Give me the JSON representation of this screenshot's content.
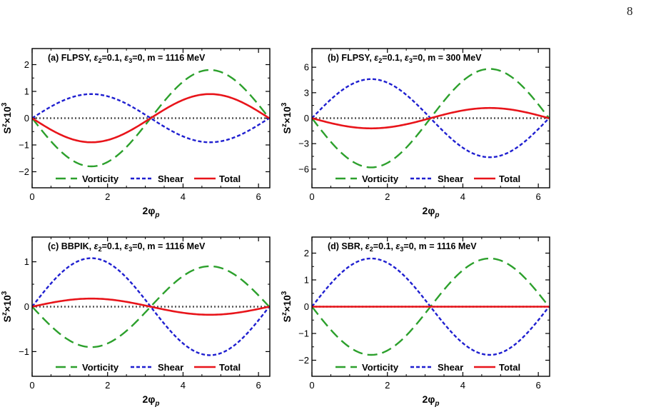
{
  "page_number": "8",
  "colors": {
    "vorticity": "#2ca02c",
    "shear": "#1f1fd0",
    "total": "#e8141a",
    "zero_line": "#555555"
  },
  "chart_data": [
    {
      "type": "line",
      "title_prefix": "(a) FLPSY, ",
      "title_suffix": "=0, m = 1116 MeV",
      "epsilon2": "=0.1, ",
      "xlabel": "2φ",
      "xlabel_sub": "p",
      "ylabel": "S",
      "ylabel_sup": "z",
      "ylabel_mid": "×10",
      "ylabel_exp": "3",
      "xlim": [
        0,
        6.3
      ],
      "ylim": [
        -2.6,
        2.6
      ],
      "xticks": [
        0,
        2,
        4,
        6
      ],
      "xtick_labels": [
        "0",
        "2",
        "4",
        "6"
      ],
      "yticks": [
        -2,
        -1,
        0,
        1,
        2
      ],
      "ytick_labels": [
        "−2",
        "−1",
        "0",
        "1",
        "2"
      ],
      "zero_line": true,
      "series": [
        {
          "name": "Vorticity",
          "function": "-A*sin(x)",
          "amplitude": 1.8,
          "style": "long-dash"
        },
        {
          "name": "Shear",
          "function": "A*sin(x)",
          "amplitude": 0.9,
          "style": "short-dash"
        },
        {
          "name": "Total",
          "function": "-A*sin(x)",
          "amplitude": 0.9,
          "style": "solid"
        }
      ]
    },
    {
      "type": "line",
      "title_prefix": "(b) FLPSY, ",
      "title_suffix": "=0, m = 300 MeV",
      "epsilon2": "=0.1, ",
      "xlabel": "2φ",
      "xlabel_sub": "p",
      "ylabel": "S",
      "ylabel_sup": "z",
      "ylabel_mid": "×10",
      "ylabel_exp": "3",
      "xlim": [
        0,
        6.3
      ],
      "ylim": [
        -8.2,
        8.2
      ],
      "xticks": [
        0,
        2,
        4,
        6
      ],
      "xtick_labels": [
        "0",
        "2",
        "4",
        "6"
      ],
      "yticks": [
        -6,
        -3,
        0,
        3,
        6
      ],
      "ytick_labels": [
        "−6",
        "−3",
        "0",
        "3",
        "6"
      ],
      "zero_line": true,
      "series": [
        {
          "name": "Vorticity",
          "function": "-A*sin(x)",
          "amplitude": 5.8,
          "style": "long-dash"
        },
        {
          "name": "Shear",
          "function": "A*sin(x)",
          "amplitude": 4.6,
          "style": "short-dash"
        },
        {
          "name": "Total",
          "function": "-A*sin(x)",
          "amplitude": 1.2,
          "style": "solid"
        }
      ]
    },
    {
      "type": "line",
      "title_prefix": "(c) BBPIK, ",
      "title_suffix": "=0, m = 1116 MeV",
      "epsilon2": "=0.1, ",
      "xlabel": "2φ",
      "xlabel_sub": "p",
      "ylabel": "S",
      "ylabel_sup": "z",
      "ylabel_mid": "×10",
      "ylabel_exp": "3",
      "xlim": [
        0,
        6.3
      ],
      "ylim": [
        -1.55,
        1.55
      ],
      "xticks": [
        0,
        2,
        4,
        6
      ],
      "xtick_labels": [
        "0",
        "2",
        "4",
        "6"
      ],
      "yticks": [
        -1,
        0,
        1
      ],
      "ytick_labels": [
        "−1",
        "0",
        "1"
      ],
      "zero_line": true,
      "series": [
        {
          "name": "Vorticity",
          "function": "-A*sin(x)",
          "amplitude": 0.9,
          "style": "long-dash"
        },
        {
          "name": "Shear",
          "function": "A*sin(x)",
          "amplitude": 1.08,
          "style": "short-dash"
        },
        {
          "name": "Total",
          "function": "A*sin(x)",
          "amplitude": 0.18,
          "style": "solid"
        }
      ]
    },
    {
      "type": "line",
      "title_prefix": "(d) SBR, ",
      "title_suffix": "=0, m = 1116 MeV",
      "epsilon2": "=0.1, ",
      "xlabel": "2φ",
      "xlabel_sub": "p",
      "ylabel": "S",
      "ylabel_sup": "z",
      "ylabel_mid": "×10",
      "ylabel_exp": "3",
      "xlim": [
        0,
        6.3
      ],
      "ylim": [
        -2.6,
        2.6
      ],
      "xticks": [
        0,
        2,
        4,
        6
      ],
      "xtick_labels": [
        "0",
        "2",
        "4",
        "6"
      ],
      "yticks": [
        -2,
        -1,
        0,
        1,
        2
      ],
      "ytick_labels": [
        "−2",
        "−1",
        "0",
        "1",
        "2"
      ],
      "zero_line": true,
      "series": [
        {
          "name": "Vorticity",
          "function": "-A*sin(x)",
          "amplitude": 1.8,
          "style": "long-dash"
        },
        {
          "name": "Shear",
          "function": "A*sin(x)",
          "amplitude": 1.8,
          "style": "short-dash"
        },
        {
          "name": "Total",
          "function": "A*sin(x)",
          "amplitude": 0.0,
          "style": "solid"
        }
      ]
    }
  ],
  "legend": {
    "items": [
      "Vorticity",
      "Shear",
      "Total"
    ]
  },
  "symbols": {
    "epsilon": "ε",
    "sub2": "2",
    "sub3": "3"
  }
}
